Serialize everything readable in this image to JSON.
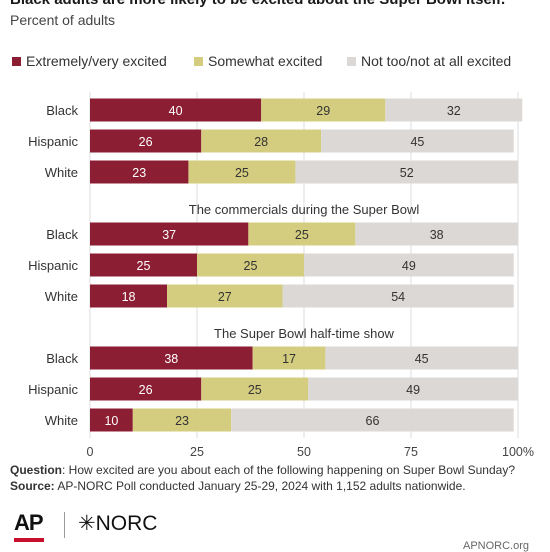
{
  "title": "Black adults are more likely to be excited about the Super Bowl itself.",
  "subtitle": "Percent of adults",
  "footer": {
    "question_label": "Question",
    "question_text": ": How excited are you about each of the following happening on Super Bowl Sunday?",
    "source_label": "Source:",
    "source_text": " AP-NORC Poll conducted January 25-29, 2024 with 1,152 adults nationwide."
  },
  "logos": {
    "ap": "AP",
    "norc": "NORC"
  },
  "credit": "APNORC.org",
  "colors": {
    "extremely": "#8b1e32",
    "somewhat": "#d4cd7f",
    "not": "#dcd8d5",
    "grid": "#dddddd"
  },
  "chart_data": {
    "type": "bar",
    "orientation": "horizontal",
    "stacked": true,
    "xlim": [
      0,
      100
    ],
    "x_ticks": [
      "0",
      "25",
      "50",
      "75",
      "100%"
    ],
    "legend": [
      "Extremely/very excited",
      "Somewhat excited",
      "Not too/not at all excited"
    ],
    "legend_position": "top",
    "groups": [
      {
        "title": "",
        "rows": [
          {
            "label": "Black",
            "values": [
              40,
              29,
              32
            ]
          },
          {
            "label": "Hispanic",
            "values": [
              26,
              28,
              45
            ]
          },
          {
            "label": "White",
            "values": [
              23,
              25,
              52
            ]
          }
        ]
      },
      {
        "title": "The commercials during the Super Bowl",
        "rows": [
          {
            "label": "Black",
            "values": [
              37,
              25,
              38
            ]
          },
          {
            "label": "Hispanic",
            "values": [
              25,
              25,
              49
            ]
          },
          {
            "label": "White",
            "values": [
              18,
              27,
              54
            ]
          }
        ]
      },
      {
        "title": "The Super Bowl half-time show",
        "rows": [
          {
            "label": "Black",
            "values": [
              38,
              17,
              45
            ]
          },
          {
            "label": "Hispanic",
            "values": [
              26,
              25,
              49
            ]
          },
          {
            "label": "White",
            "values": [
              10,
              23,
              66
            ]
          }
        ]
      }
    ]
  }
}
